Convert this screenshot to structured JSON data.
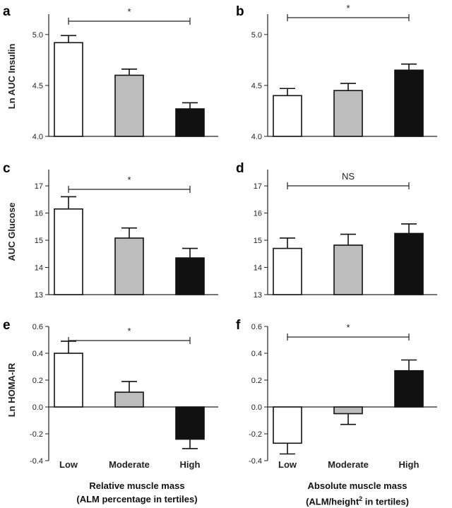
{
  "chart_data": [
    {
      "panel": "a",
      "type": "bar",
      "categories": [
        "Low",
        "Moderate",
        "High"
      ],
      "values": [
        4.92,
        4.6,
        4.27
      ],
      "errors": [
        0.07,
        0.06,
        0.06
      ],
      "colors": [
        "#ffffff",
        "#bdbdbd",
        "#111111"
      ],
      "ylabel": "Ln AUC Insulin",
      "ylim": [
        4.0,
        5.2
      ],
      "yticks": [
        "4.0",
        "4.5",
        "5.0"
      ],
      "significance": "*",
      "show_categories": false
    },
    {
      "panel": "b",
      "type": "bar",
      "categories": [
        "Low",
        "Moderate",
        "High"
      ],
      "values": [
        4.4,
        4.45,
        4.65
      ],
      "errors": [
        0.07,
        0.07,
        0.06
      ],
      "colors": [
        "#ffffff",
        "#bdbdbd",
        "#111111"
      ],
      "ylabel": "",
      "ylim": [
        4.0,
        5.2
      ],
      "yticks": [
        "4.0",
        "4.5",
        "5.0"
      ],
      "significance": "*",
      "show_categories": false
    },
    {
      "panel": "c",
      "type": "bar",
      "categories": [
        "Low",
        "Moderate",
        "High"
      ],
      "values": [
        16.15,
        15.08,
        14.35
      ],
      "errors": [
        0.45,
        0.37,
        0.35
      ],
      "colors": [
        "#ffffff",
        "#bdbdbd",
        "#111111"
      ],
      "ylabel": "AUC Glucose",
      "ylim": [
        13,
        17.6
      ],
      "yticks": [
        "13",
        "14",
        "15",
        "16",
        "17"
      ],
      "significance": "*",
      "show_categories": false
    },
    {
      "panel": "d",
      "type": "bar",
      "categories": [
        "Low",
        "Moderate",
        "High"
      ],
      "values": [
        14.7,
        14.82,
        15.25
      ],
      "errors": [
        0.38,
        0.4,
        0.35
      ],
      "colors": [
        "#ffffff",
        "#bdbdbd",
        "#111111"
      ],
      "ylabel": "",
      "ylim": [
        13,
        17.6
      ],
      "yticks": [
        "13",
        "14",
        "15",
        "16",
        "17"
      ],
      "significance": "NS",
      "show_categories": false
    },
    {
      "panel": "e",
      "type": "bar",
      "categories": [
        "Low",
        "Moderate",
        "High"
      ],
      "values": [
        0.4,
        0.11,
        -0.24
      ],
      "errors": [
        0.09,
        0.08,
        0.07
      ],
      "colors": [
        "#ffffff",
        "#bdbdbd",
        "#111111"
      ],
      "ylabel": "Ln HOMA-IR",
      "ylim": [
        -0.4,
        0.6
      ],
      "yticks": [
        "-0.4",
        "-0.2",
        "0.0",
        "0.2",
        "0.4",
        "0.6"
      ],
      "significance": "*",
      "show_categories": true
    },
    {
      "panel": "f",
      "type": "bar",
      "categories": [
        "Low",
        "Moderate",
        "High"
      ],
      "values": [
        -0.27,
        -0.05,
        0.27
      ],
      "errors": [
        0.08,
        0.08,
        0.08
      ],
      "colors": [
        "#ffffff",
        "#bdbdbd",
        "#111111"
      ],
      "ylabel": "",
      "ylim": [
        -0.4,
        0.6
      ],
      "yticks": [
        "-0.4",
        "-0.2",
        "0.0",
        "0.2",
        "0.4",
        "0.6"
      ],
      "significance": "*",
      "show_categories": true
    }
  ],
  "xlabels": {
    "left_line1": "Relative muscle mass",
    "left_line2": "(ALM percentage in tertiles)",
    "right_line1": "Absolute muscle mass",
    "right_line2_pre": "(ALM/height",
    "right_line2_sup": "2",
    "right_line2_post": " in tertiles)"
  }
}
